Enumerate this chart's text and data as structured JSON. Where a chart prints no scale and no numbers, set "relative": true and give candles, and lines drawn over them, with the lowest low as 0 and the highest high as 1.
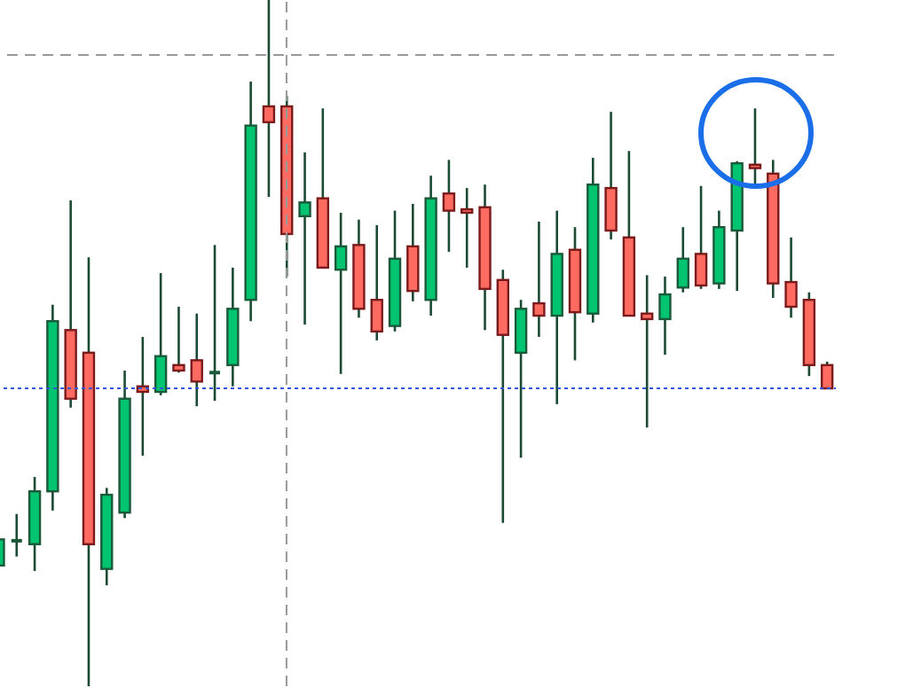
{
  "chart_data": {
    "type": "candlestick",
    "relative": true,
    "categories": [
      null,
      null,
      null,
      null,
      null,
      null,
      null,
      null,
      null,
      null,
      null,
      null,
      null,
      null,
      null,
      null,
      null,
      null,
      null,
      null,
      null,
      null,
      null,
      null,
      null,
      null,
      null,
      null,
      null,
      null,
      null,
      null,
      null,
      null,
      null,
      null,
      null,
      null,
      null,
      null,
      null,
      null,
      null,
      null,
      null,
      null,
      null
    ],
    "ohlc": [
      [
        0.176,
        0.22,
        0.173,
        0.214
      ],
      [
        0.212,
        0.251,
        0.189,
        0.212
      ],
      [
        0.207,
        0.305,
        0.168,
        0.284
      ],
      [
        0.284,
        0.556,
        0.256,
        0.532
      ],
      [
        0.519,
        0.708,
        0.406,
        0.419
      ],
      [
        0.486,
        0.625,
        0,
        0.207
      ],
      [
        0.171,
        0.289,
        0.147,
        0.279
      ],
      [
        0.253,
        0.46,
        0.245,
        0.419
      ],
      [
        0.437,
        0.509,
        0.336,
        0.429
      ],
      [
        0.429,
        0.602,
        0.424,
        0.481
      ],
      [
        0.468,
        0.553,
        0.457,
        0.46
      ],
      [
        0.475,
        0.543,
        0.408,
        0.444
      ],
      [
        0.457,
        0.643,
        0.416,
        0.457
      ],
      [
        0.468,
        0.61,
        0.437,
        0.55
      ],
      [
        0.563,
        0.881,
        0.532,
        0.817
      ],
      [
        0.845,
        1,
        0.713,
        0.822
      ],
      [
        0.845,
        0.86,
        0.597,
        0.659
      ],
      [
        0.685,
        0.778,
        0.527,
        0.705
      ],
      [
        0.711,
        0.842,
        0.61,
        0.61
      ],
      [
        0.607,
        0.69,
        0.455,
        0.641
      ],
      [
        0.643,
        0.68,
        0.537,
        0.55
      ],
      [
        0.563,
        0.672,
        0.504,
        0.517
      ],
      [
        0.525,
        0.693,
        0.517,
        0.623
      ],
      [
        0.641,
        0.703,
        0.561,
        0.576
      ],
      [
        0.563,
        0.744,
        0.54,
        0.711
      ],
      [
        0.718,
        0.767,
        0.633,
        0.693
      ],
      [
        0.695,
        0.726,
        0.61,
        0.69
      ],
      [
        0.698,
        0.731,
        0.519,
        0.579
      ],
      [
        0.592,
        0.607,
        0.238,
        0.512
      ],
      [
        0.486,
        0.563,
        0.333,
        0.55
      ],
      [
        0.558,
        0.677,
        0.509,
        0.54
      ],
      [
        0.54,
        0.693,
        0.411,
        0.63
      ],
      [
        0.636,
        0.669,
        0.475,
        0.545
      ],
      [
        0.543,
        0.77,
        0.53,
        0.731
      ],
      [
        0.726,
        0.837,
        0.651,
        0.664
      ],
      [
        0.654,
        0.78,
        0.54,
        0.54
      ],
      [
        0.543,
        0.599,
        0.377,
        0.535
      ],
      [
        0.535,
        0.597,
        0.483,
        0.571
      ],
      [
        0.581,
        0.669,
        0.574,
        0.623
      ],
      [
        0.63,
        0.729,
        0.579,
        0.584
      ],
      [
        0.587,
        0.693,
        0.579,
        0.669
      ],
      [
        0.664,
        0.765,
        0.576,
        0.762
      ],
      [
        0.76,
        0.842,
        0.729,
        0.755
      ],
      [
        0.747,
        0.767,
        0.566,
        0.587
      ],
      [
        0.589,
        0.654,
        0.537,
        0.553
      ],
      [
        0.563,
        0.574,
        0.452,
        0.468
      ],
      [
        0.468,
        0.473,
        0.434,
        0.434
      ]
    ],
    "ref_lines": [
      {
        "axis": "y",
        "value": 0.92,
        "color": "#999999",
        "line_style": "dashed"
      },
      {
        "axis": "y",
        "value": 0.434,
        "color": "#3355dd",
        "line_style": "dotted"
      }
    ]
  }
}
